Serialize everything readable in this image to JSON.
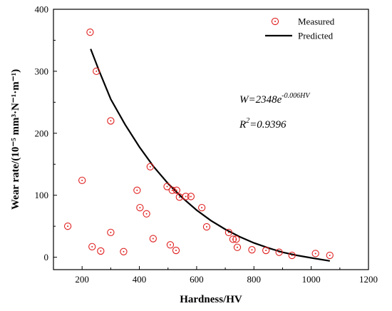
{
  "chart_data": {
    "type": "scatter",
    "xlabel": "Hardness/HV",
    "ylabel": "Wear rate/(10⁻⁵ mm³·N⁻¹·m⁻¹)",
    "xlim": [
      100,
      1200
    ],
    "ylim": [
      -20,
      400
    ],
    "x_ticks": [
      200,
      400,
      600,
      800,
      1000,
      1200
    ],
    "y_ticks": [
      0,
      100,
      200,
      300,
      400
    ],
    "grid": false,
    "legend_position": "top-right",
    "series": [
      {
        "name": "Measured",
        "kind": "scatter",
        "marker": "circle-dot",
        "color": "#e02020",
        "points": [
          {
            "x": 150,
            "y": 50
          },
          {
            "x": 200,
            "y": 124
          },
          {
            "x": 228,
            "y": 363
          },
          {
            "x": 235,
            "y": 17
          },
          {
            "x": 250,
            "y": 300
          },
          {
            "x": 265,
            "y": 10
          },
          {
            "x": 300,
            "y": 220
          },
          {
            "x": 300,
            "y": 40
          },
          {
            "x": 345,
            "y": 9
          },
          {
            "x": 392,
            "y": 108
          },
          {
            "x": 402,
            "y": 80
          },
          {
            "x": 425,
            "y": 70
          },
          {
            "x": 438,
            "y": 146
          },
          {
            "x": 448,
            "y": 30
          },
          {
            "x": 497,
            "y": 114
          },
          {
            "x": 508,
            "y": 20
          },
          {
            "x": 515,
            "y": 108
          },
          {
            "x": 528,
            "y": 11
          },
          {
            "x": 530,
            "y": 108
          },
          {
            "x": 540,
            "y": 97
          },
          {
            "x": 562,
            "y": 98
          },
          {
            "x": 580,
            "y": 98
          },
          {
            "x": 618,
            "y": 80
          },
          {
            "x": 635,
            "y": 49
          },
          {
            "x": 712,
            "y": 40
          },
          {
            "x": 727,
            "y": 29
          },
          {
            "x": 738,
            "y": 29
          },
          {
            "x": 742,
            "y": 16
          },
          {
            "x": 793,
            "y": 12
          },
          {
            "x": 842,
            "y": 11
          },
          {
            "x": 888,
            "y": 8
          },
          {
            "x": 933,
            "y": 3
          },
          {
            "x": 1015,
            "y": 6
          },
          {
            "x": 1065,
            "y": 3
          }
        ]
      },
      {
        "name": "Predicted",
        "kind": "line",
        "color": "#000000",
        "points": [
          {
            "x": 230,
            "y": 336
          },
          {
            "x": 260,
            "y": 300
          },
          {
            "x": 300,
            "y": 255
          },
          {
            "x": 350,
            "y": 214
          },
          {
            "x": 400,
            "y": 178
          },
          {
            "x": 450,
            "y": 146
          },
          {
            "x": 500,
            "y": 119
          },
          {
            "x": 550,
            "y": 96
          },
          {
            "x": 600,
            "y": 76
          },
          {
            "x": 650,
            "y": 59
          },
          {
            "x": 700,
            "y": 45
          },
          {
            "x": 750,
            "y": 33
          },
          {
            "x": 800,
            "y": 23
          },
          {
            "x": 850,
            "y": 15
          },
          {
            "x": 900,
            "y": 8
          },
          {
            "x": 950,
            "y": 3
          },
          {
            "x": 1000,
            "y": -1
          },
          {
            "x": 1065,
            "y": -6
          }
        ]
      }
    ],
    "annotations": {
      "equation": "W=2348e",
      "equation_exponent": "-0.006HV",
      "r2_label": "R",
      "r2_sup": "2",
      "r2_value": "=0.9396"
    }
  }
}
